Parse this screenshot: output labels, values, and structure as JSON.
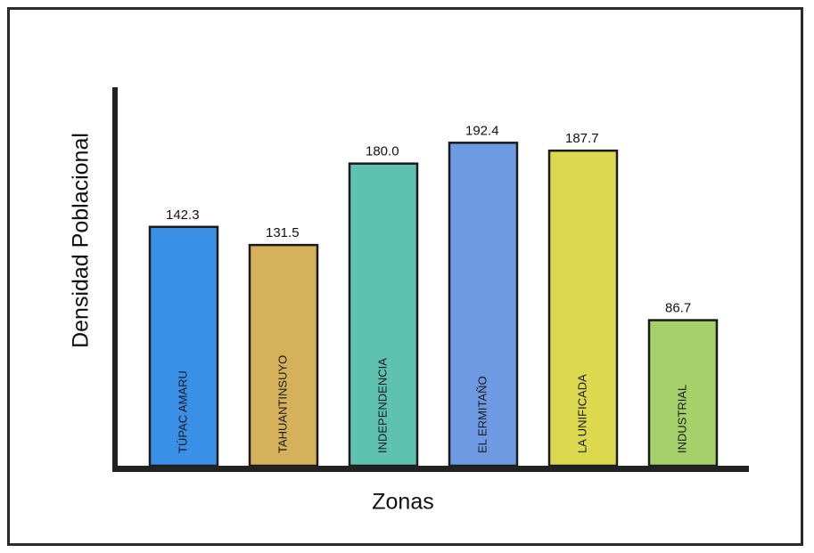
{
  "chart_data": {
    "type": "bar",
    "xlabel": "Zonas",
    "ylabel": "Densidad Poblacional",
    "ylim": [
      0,
      200
    ],
    "grid": false,
    "categories": [
      "TÚPAC AMARU",
      "TAHUANTINSUYO",
      "INDEPENDENCIA",
      "EL ERMITAÑO",
      "LA UNIFICADA",
      "INDUSTRIAL"
    ],
    "values": [
      142.3,
      131.5,
      180.0,
      192.4,
      187.7,
      86.7
    ],
    "value_labels": [
      "142.3",
      "131.5",
      "180.0",
      "192.4",
      "187.7",
      "86.7"
    ],
    "colors": [
      "#3a8fe6",
      "#d4b15a",
      "#5fc1b0",
      "#6d9ae3",
      "#dcd94f",
      "#a5d06a"
    ]
  }
}
